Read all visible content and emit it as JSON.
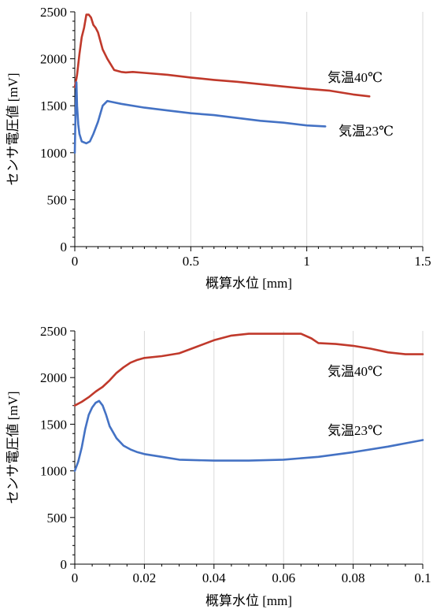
{
  "chart_data": [
    {
      "type": "line",
      "xlabel": "概算水位 [mm]",
      "ylabel": "センサ電圧値 [mV]",
      "xlim": [
        0,
        1.5
      ],
      "ylim": [
        0,
        2500
      ],
      "x_ticks": [
        "0",
        "0.5",
        "1",
        "1.5"
      ],
      "y_ticks": [
        "0",
        "500",
        "1000",
        "1500",
        "2000",
        "2500"
      ],
      "grid": "vertical",
      "series": [
        {
          "name": "気温40℃",
          "color": "#c0392b",
          "x": [
            0.0,
            0.003,
            0.007,
            0.01,
            0.02,
            0.03,
            0.04,
            0.05,
            0.06,
            0.07,
            0.08,
            0.09,
            0.1,
            0.12,
            0.14,
            0.17,
            0.2,
            0.22,
            0.25,
            0.3,
            0.4,
            0.5,
            0.6,
            0.7,
            0.8,
            0.9,
            1.0,
            1.1,
            1.2,
            1.27
          ],
          "y": [
            1700,
            1740,
            1790,
            1830,
            2050,
            2230,
            2330,
            2470,
            2470,
            2440,
            2360,
            2330,
            2280,
            2100,
            2000,
            1880,
            1860,
            1855,
            1860,
            1850,
            1830,
            1800,
            1775,
            1755,
            1730,
            1705,
            1680,
            1660,
            1620,
            1600
          ]
        },
        {
          "name": "気温23℃",
          "color": "#4472c4",
          "x": [
            0.0,
            0.003,
            0.007,
            0.01,
            0.015,
            0.02,
            0.03,
            0.05,
            0.065,
            0.08,
            0.1,
            0.12,
            0.14,
            0.16,
            0.2,
            0.3,
            0.4,
            0.5,
            0.6,
            0.7,
            0.8,
            0.9,
            1.0,
            1.08
          ],
          "y": [
            1000,
            1400,
            1750,
            1500,
            1300,
            1200,
            1120,
            1100,
            1120,
            1200,
            1330,
            1500,
            1550,
            1540,
            1520,
            1480,
            1450,
            1420,
            1400,
            1370,
            1340,
            1320,
            1290,
            1280
          ]
        }
      ]
    },
    {
      "type": "line",
      "xlabel": "概算水位 [mm]",
      "ylabel": "センサ電圧値 [mV]",
      "xlim": [
        0,
        0.1
      ],
      "ylim": [
        0,
        2500
      ],
      "x_ticks": [
        "0",
        "0.02",
        "0.04",
        "0.06",
        "0.08",
        "0.1"
      ],
      "y_ticks": [
        "0",
        "500",
        "1000",
        "1500",
        "2000",
        "2500"
      ],
      "grid": "vertical",
      "series": [
        {
          "name": "気温40℃",
          "color": "#c0392b",
          "x": [
            0.0,
            0.002,
            0.004,
            0.006,
            0.008,
            0.01,
            0.012,
            0.014,
            0.016,
            0.018,
            0.02,
            0.025,
            0.03,
            0.035,
            0.04,
            0.045,
            0.05,
            0.055,
            0.06,
            0.065,
            0.068,
            0.07,
            0.075,
            0.08,
            0.085,
            0.09,
            0.095,
            0.1
          ],
          "y": [
            1700,
            1740,
            1790,
            1850,
            1900,
            1970,
            2050,
            2110,
            2160,
            2190,
            2210,
            2230,
            2260,
            2330,
            2400,
            2450,
            2470,
            2470,
            2470,
            2470,
            2420,
            2370,
            2360,
            2340,
            2310,
            2270,
            2250,
            2250
          ]
        },
        {
          "name": "気温23℃",
          "color": "#4472c4",
          "x": [
            0.0,
            0.001,
            0.002,
            0.003,
            0.004,
            0.005,
            0.006,
            0.007,
            0.008,
            0.009,
            0.01,
            0.012,
            0.014,
            0.016,
            0.018,
            0.02,
            0.025,
            0.03,
            0.04,
            0.05,
            0.06,
            0.07,
            0.08,
            0.09,
            0.1
          ],
          "y": [
            1000,
            1100,
            1250,
            1450,
            1600,
            1680,
            1730,
            1750,
            1700,
            1600,
            1480,
            1350,
            1270,
            1230,
            1200,
            1180,
            1150,
            1120,
            1110,
            1110,
            1120,
            1150,
            1200,
            1260,
            1330
          ]
        }
      ]
    }
  ]
}
